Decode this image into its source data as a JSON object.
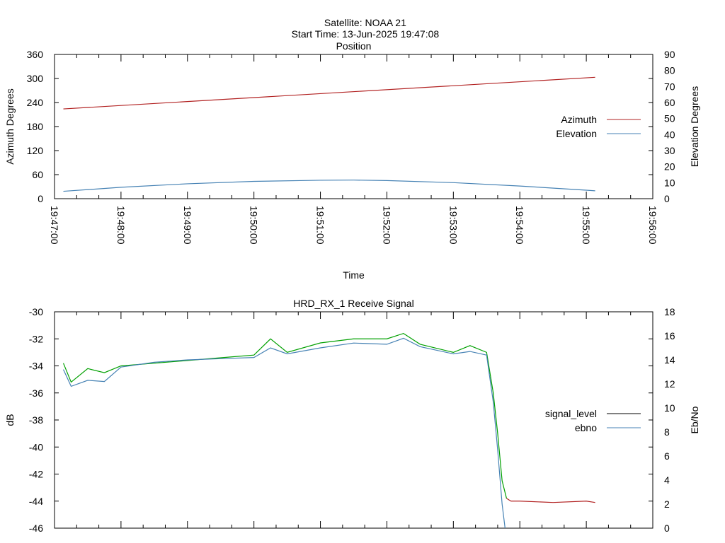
{
  "header": {
    "satellite": "Satellite: NOAA 21",
    "start_time": "Start Time: 13-Jun-2025 19:47:08"
  },
  "chart_data": [
    {
      "type": "line",
      "title": "Position",
      "xlabel": "Time",
      "ylabel": "Azimuth Degrees",
      "y2label": "Elevation Degrees",
      "x_ticks": [
        "19:47:00",
        "19:48:00",
        "19:49:00",
        "19:50:00",
        "19:51:00",
        "19:52:00",
        "19:53:00",
        "19:54:00",
        "19:55:00",
        "19:56:00"
      ],
      "xlim": [
        "19:47:00",
        "19:56:00"
      ],
      "ylim": [
        0,
        360
      ],
      "y_ticks": [
        "0",
        "60",
        "120",
        "180",
        "240",
        "300",
        "360"
      ],
      "y2lim": [
        0,
        90
      ],
      "y2_ticks": [
        "0",
        "10",
        "20",
        "30",
        "40",
        "50",
        "60",
        "70",
        "80",
        "90"
      ],
      "legend_position": "right",
      "series": [
        {
          "name": "Azimuth",
          "axis": "y",
          "color": "#b22222",
          "x": [
            "19:47:08",
            "19:55:08"
          ],
          "values": [
            224,
            303
          ]
        },
        {
          "name": "Elevation",
          "axis": "y2",
          "color": "#4682b4",
          "x": [
            "19:47:08",
            "19:48:00",
            "19:49:00",
            "19:50:00",
            "19:51:00",
            "19:51:30",
            "19:52:00",
            "19:53:00",
            "19:54:00",
            "19:55:00",
            "19:55:08"
          ],
          "values": [
            4.6,
            7.1,
            9.3,
            10.8,
            11.5,
            11.6,
            11.3,
            10.0,
            7.9,
            5.3,
            4.9
          ]
        }
      ]
    },
    {
      "type": "line",
      "title": "HRD_RX_1 Receive Signal",
      "ylabel": "dB",
      "y2label": "Eb/No",
      "xlim": [
        "19:47:00",
        "19:56:00"
      ],
      "ylim": [
        -46,
        -30
      ],
      "y_ticks": [
        "-46",
        "-44",
        "-42",
        "-40",
        "-38",
        "-36",
        "-34",
        "-32",
        "-30"
      ],
      "y2lim": [
        0,
        18
      ],
      "y2_ticks": [
        "0",
        "2",
        "4",
        "6",
        "8",
        "10",
        "12",
        "14",
        "16",
        "18"
      ],
      "legend_position": "right",
      "series": [
        {
          "name": "signal_level",
          "axis": "y",
          "color": "#000000",
          "segment_colors": {
            "strong_signal": "#00a000",
            "loss_of_signal": "#b22222"
          },
          "x": [
            "19:47:08",
            "19:47:15",
            "19:47:30",
            "19:47:45",
            "19:48:00",
            "19:48:30",
            "19:49:00",
            "19:49:30",
            "19:50:00",
            "19:50:15",
            "19:50:30",
            "19:51:00",
            "19:51:30",
            "19:52:00",
            "19:52:15",
            "19:52:30",
            "19:53:00",
            "19:53:15",
            "19:53:30",
            "19:53:36",
            "19:53:40",
            "19:53:44",
            "19:53:48",
            "19:53:52",
            "19:54:00",
            "19:54:30",
            "19:55:00",
            "19:55:08"
          ],
          "values": [
            -33.8,
            -35.2,
            -34.2,
            -34.5,
            -34.0,
            -33.8,
            -33.6,
            -33.4,
            -33.2,
            -32.0,
            -33.0,
            -32.3,
            -32.0,
            -32.0,
            -31.6,
            -32.4,
            -33.0,
            -32.5,
            -33.0,
            -36.0,
            -39.0,
            -42.5,
            -43.8,
            -44.0,
            -44.0,
            -44.1,
            -44.0,
            -44.1
          ]
        },
        {
          "name": "ebno",
          "axis": "y2",
          "color": "#4682b4",
          "x": [
            "19:47:08",
            "19:47:15",
            "19:47:30",
            "19:47:45",
            "19:48:00",
            "19:48:30",
            "19:49:00",
            "19:49:30",
            "19:50:00",
            "19:50:15",
            "19:50:30",
            "19:51:00",
            "19:51:30",
            "19:52:00",
            "19:52:15",
            "19:52:30",
            "19:53:00",
            "19:53:15",
            "19:53:30",
            "19:53:36",
            "19:53:40",
            "19:53:44",
            "19:53:48"
          ],
          "values": [
            13.2,
            11.8,
            12.3,
            12.2,
            13.4,
            13.8,
            14.0,
            14.1,
            14.2,
            15.0,
            14.5,
            15.0,
            15.4,
            15.3,
            15.8,
            15.1,
            14.5,
            14.7,
            14.4,
            10.5,
            6.5,
            2.0,
            -1.0
          ]
        }
      ]
    }
  ]
}
